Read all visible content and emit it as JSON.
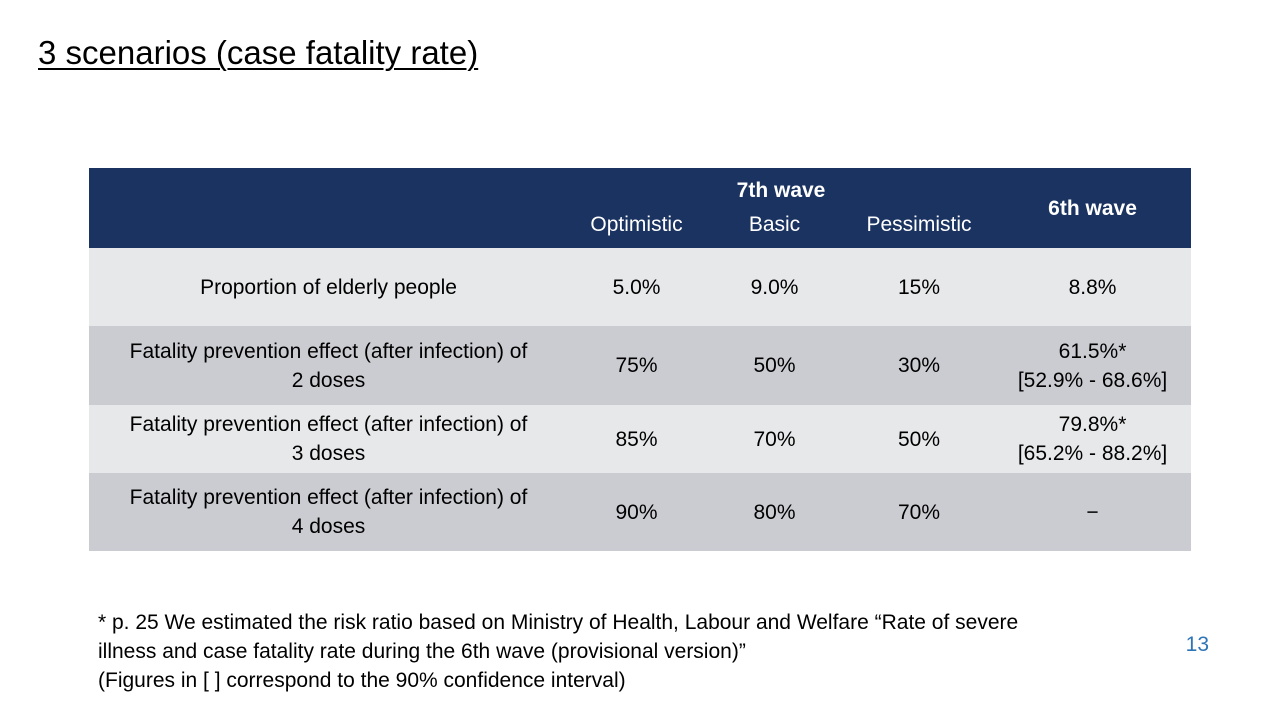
{
  "slide": {
    "title": "3 scenarios (case fatality rate)",
    "page_number": "13"
  },
  "table": {
    "group_header": "7th wave",
    "sixth_wave_header": "6th wave",
    "sub_headers": [
      "Optimistic",
      "Basic",
      "Pessimistic"
    ],
    "rows": [
      {
        "label": "Proportion of elderly people",
        "label_line2": "",
        "values": [
          "5.0%",
          "9.0%",
          "15%"
        ],
        "sixth": "8.8%",
        "sixth_ci": ""
      },
      {
        "label": "Fatality prevention effect (after infection) of",
        "label_line2": "2 doses",
        "values": [
          "75%",
          "50%",
          "30%"
        ],
        "sixth": "61.5%*",
        "sixth_ci": "[52.9% - 68.6%]"
      },
      {
        "label": "Fatality prevention effect (after infection) of",
        "label_line2": "3 doses",
        "values": [
          "85%",
          "70%",
          "50%"
        ],
        "sixth": "79.8%*",
        "sixth_ci": "[65.2% - 88.2%]"
      },
      {
        "label": "Fatality prevention effect (after infection) of",
        "label_line2": "4 doses",
        "values": [
          "90%",
          "80%",
          "70%"
        ],
        "sixth": "−",
        "sixth_ci": ""
      }
    ]
  },
  "footnote": {
    "line1": "* p. 25 We estimated the risk ratio based on Ministry of Health, Labour and Welfare “Rate of severe",
    "line2": "illness and case fatality rate during the 6th wave (provisional version)”",
    "line3": "(Figures in [ ] correspond to the 90% confidence interval)"
  },
  "colors": {
    "header_background": "#1b3360",
    "row_light": "#e7e8ea",
    "row_dark": "#cbccd1",
    "page_number": "#2e75b6"
  }
}
